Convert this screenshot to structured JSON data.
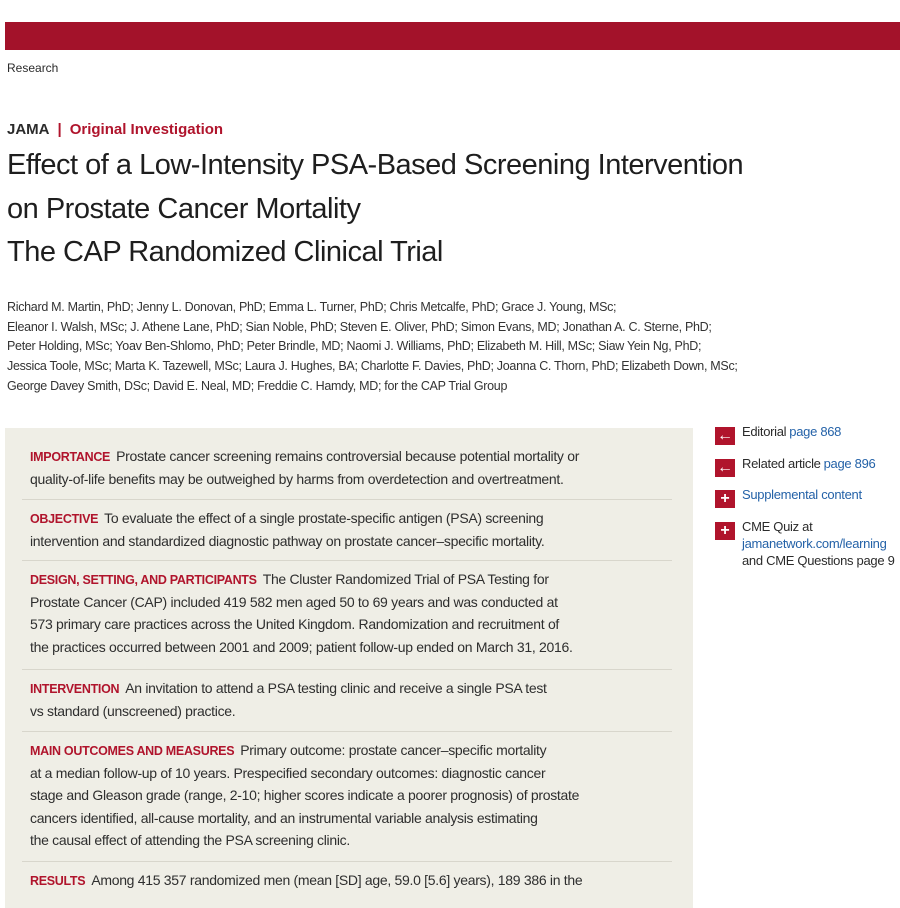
{
  "header": {
    "section": "Research",
    "journal": "JAMA",
    "article_type": "Original Investigation"
  },
  "title": {
    "lines": [
      "Effect of a Low-Intensity PSA-Based Screening Intervention",
      "on Prostate Cancer Mortality"
    ],
    "subtitle": "The CAP Randomized Clinical Trial"
  },
  "authors": [
    "Richard M. Martin, PhD; Jenny L. Donovan, PhD; Emma L. Turner, PhD; Chris Metcalfe, PhD; Grace J. Young, MSc;",
    "Eleanor I. Walsh, MSc; J. Athene Lane, PhD; Sian Noble, PhD; Steven E. Oliver, PhD; Simon Evans, MD; Jonathan A. C. Sterne, PhD;",
    "Peter Holding, MSc; Yoav Ben-Shlomo, PhD; Peter Brindle, MD; Naomi J. Williams, PhD; Elizabeth M. Hill, MSc; Siaw Yein Ng, PhD;",
    "Jessica Toole, MSc; Marta K. Tazewell, MSc; Laura J. Hughes, BA; Charlotte F. Davies, PhD; Joanna C. Thorn, PhD; Elizabeth Down, MSc;",
    "George Davey Smith, DSc; David E. Neal, MD; Freddie C. Hamdy, MD; for the CAP Trial Group"
  ],
  "abstract": [
    {
      "label": "IMPORTANCE",
      "lines": [
        "Prostate cancer screening remains controversial because potential mortality or",
        "quality-of-life benefits may be outweighed by harms from overdetection and overtreatment."
      ]
    },
    {
      "label": "OBJECTIVE",
      "lines": [
        "To evaluate the effect of a single prostate-specific antigen (PSA) screening",
        "intervention and standardized diagnostic pathway on prostate cancer–specific mortality."
      ]
    },
    {
      "label": "DESIGN, SETTING, AND PARTICIPANTS",
      "lines": [
        "The Cluster Randomized Trial of PSA Testing for",
        "Prostate Cancer (CAP) included 419 582 men aged 50 to 69 years and was conducted at",
        "573 primary care practices across the United Kingdom. Randomization and recruitment of",
        "the practices occurred between 2001 and 2009; patient follow-up ended on March 31, 2016."
      ]
    },
    {
      "label": "INTERVENTION",
      "lines": [
        "An invitation to attend a PSA testing clinic and receive a single PSA test",
        "vs standard (unscreened) practice."
      ]
    },
    {
      "label": "MAIN OUTCOMES AND MEASURES",
      "lines": [
        "Primary outcome: prostate cancer–specific mortality",
        "at a median follow-up of 10 years. Prespecified secondary outcomes: diagnostic cancer",
        "stage and Gleason grade (range, 2-10; higher scores indicate a poorer prognosis) of prostate",
        "cancers identified, all-cause mortality, and an instrumental variable analysis estimating",
        "the causal effect of attending the PSA screening clinic."
      ]
    },
    {
      "label": "RESULTS",
      "lines": [
        "Among 415 357 randomized men (mean [SD] age, 59.0 [5.6] years), 189 386 in the"
      ]
    }
  ],
  "sidebar": [
    {
      "icon": "arrow",
      "lines": [
        [
          "Editorial",
          "page 868"
        ]
      ]
    },
    {
      "icon": "arrow",
      "lines": [
        [
          "Related article",
          "page 896"
        ]
      ]
    },
    {
      "icon": "plus",
      "lines": [
        [
          "",
          "Supplemental content"
        ]
      ]
    },
    {
      "icon": "plus",
      "lines": [
        [
          "CME Quiz at",
          ""
        ],
        [
          "",
          "jamanetwork.com/learning"
        ],
        [
          "and CME Questions page 9",
          ""
        ]
      ]
    }
  ]
}
